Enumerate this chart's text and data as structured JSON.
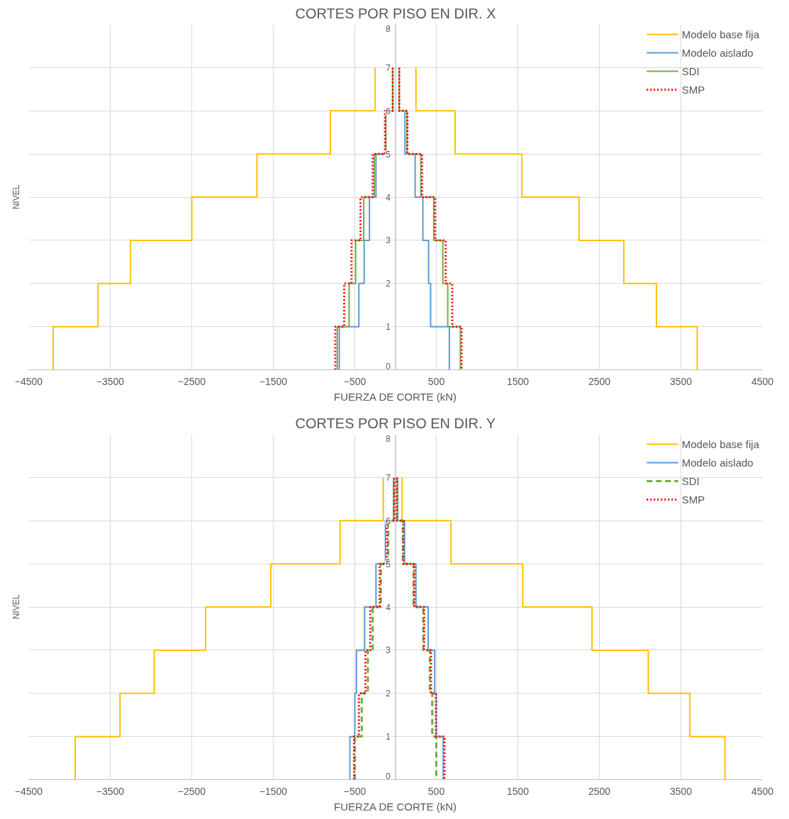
{
  "chart_data": [
    {
      "type": "line",
      "title": "CORTES POR PISO EN DIR. X",
      "xlabel": "FUERZA DE CORTE (kN)",
      "ylabel": "NIVEL",
      "xlim": [
        -4500,
        4500
      ],
      "xticks": [
        -4500,
        -3500,
        -2500,
        -1500,
        -500,
        500,
        1500,
        2500,
        3500,
        4500
      ],
      "ylim": [
        0,
        8
      ],
      "yticks": [
        0,
        1,
        2,
        3,
        4,
        5,
        6,
        7,
        8
      ],
      "grid": true,
      "legend": "top right",
      "marker": "none",
      "series": [
        {
          "name": "Modelo base fija",
          "color": "#ffc000",
          "line_style": "solid",
          "x": [
            -4200,
            -4200,
            -3650,
            -3650,
            -3250,
            -3250,
            -2500,
            -2500,
            -1700,
            -1700,
            -800,
            -800,
            -250,
            -250,
            null,
            250,
            250,
            730,
            730,
            1550,
            1550,
            2250,
            2250,
            2800,
            2800,
            3200,
            3200,
            3700,
            3700
          ],
          "values": [
            0,
            1,
            1,
            2,
            2,
            3,
            3,
            4,
            4,
            5,
            5,
            6,
            6,
            7,
            null,
            7,
            6,
            6,
            5,
            5,
            4,
            4,
            3,
            3,
            2,
            2,
            1,
            1,
            0
          ]
        },
        {
          "name": "Modelo aislado",
          "color": "#5b9bd5",
          "line_style": "solid",
          "values": [
            0,
            1,
            1,
            2,
            2,
            3,
            3,
            4,
            4,
            5,
            5,
            6,
            6,
            7,
            null,
            null,
            null,
            6,
            5,
            5,
            4,
            4,
            3,
            3,
            2,
            2,
            1,
            1,
            0
          ],
          "x": [
            -690,
            -690,
            -450,
            -450,
            -385,
            -385,
            -320,
            -320,
            -240,
            -240,
            -120,
            -120,
            -35,
            -35,
            null,
            null,
            null,
            115,
            115,
            240,
            240,
            335,
            335,
            405,
            405,
            430,
            430,
            660,
            660
          ]
        },
        {
          "name": "SDI",
          "color": "#70ad47",
          "line_style": "solid",
          "x": [
            -715,
            -715,
            -570,
            -570,
            -490,
            -490,
            -390,
            -390,
            -260,
            -260,
            -120,
            -120,
            -35,
            -35,
            null,
            45,
            45,
            140,
            140,
            310,
            310,
            470,
            470,
            580,
            580,
            640,
            640,
            795,
            795
          ],
          "values": [
            0,
            1,
            1,
            2,
            2,
            3,
            3,
            4,
            4,
            5,
            5,
            6,
            6,
            7,
            null,
            7,
            6,
            6,
            5,
            5,
            4,
            4,
            3,
            3,
            2,
            2,
            1,
            1,
            0
          ]
        },
        {
          "name": "SMP",
          "color": "#ff0000",
          "line_style": "dotted",
          "x": [
            -740,
            -740,
            -630,
            -630,
            -540,
            -540,
            -430,
            -430,
            -280,
            -280,
            -130,
            -130,
            -35,
            -35,
            null,
            45,
            45,
            145,
            145,
            325,
            325,
            485,
            485,
            615,
            615,
            695,
            695,
            810,
            810
          ],
          "values": [
            0,
            1,
            1,
            2,
            2,
            3,
            3,
            4,
            4,
            5,
            5,
            6,
            6,
            7,
            null,
            7,
            6,
            6,
            5,
            5,
            4,
            4,
            3,
            3,
            2,
            2,
            1,
            1,
            0
          ]
        }
      ]
    },
    {
      "type": "line",
      "title": "CORTES POR PISO EN DIR. Y",
      "xlabel": "FUERZA DE CORTE (kN)",
      "ylabel": "NIVEL",
      "xlim": [
        -4500,
        4500
      ],
      "xticks": [
        -4500,
        -3500,
        -2500,
        -1500,
        -500,
        500,
        1500,
        2500,
        3500,
        4500
      ],
      "ylim": [
        0,
        8
      ],
      "yticks": [
        0,
        1,
        2,
        3,
        4,
        5,
        6,
        7,
        8
      ],
      "grid": true,
      "legend": "top right",
      "marker": "none",
      "series": [
        {
          "name": "Modelo base fija",
          "color": "#ffc000",
          "line_style": "solid",
          "x": [
            -3930,
            -3930,
            -3380,
            -3380,
            -2960,
            -2960,
            -2330,
            -2330,
            -1530,
            -1530,
            -680,
            -680,
            -150,
            -150,
            null,
            80,
            80,
            680,
            680,
            1560,
            1560,
            2410,
            2410,
            3100,
            3100,
            3610,
            3610,
            4040,
            4040
          ],
          "values": [
            0,
            1,
            1,
            2,
            2,
            3,
            3,
            4,
            4,
            5,
            5,
            6,
            6,
            7,
            null,
            7,
            6,
            6,
            5,
            5,
            4,
            4,
            3,
            3,
            2,
            2,
            1,
            1,
            0
          ]
        },
        {
          "name": "Modelo aislado",
          "color": "#5b9bd5",
          "line_style": "solid",
          "x": [
            -560,
            -560,
            -500,
            -500,
            -480,
            -480,
            -380,
            -380,
            -240,
            -240,
            -125,
            -125,
            -25,
            -25,
            null,
            25,
            25,
            110,
            110,
            250,
            250,
            400,
            400,
            480,
            480,
            500,
            500,
            585,
            585
          ],
          "values": [
            0,
            1,
            1,
            2,
            2,
            3,
            3,
            4,
            4,
            5,
            5,
            6,
            6,
            7,
            null,
            7,
            6,
            6,
            5,
            5,
            4,
            4,
            3,
            3,
            2,
            2,
            1,
            1,
            0
          ]
        },
        {
          "name": "SDI",
          "color": "#70ad47",
          "line_style": "dashed",
          "x": [
            -500,
            -500,
            -415,
            -415,
            -340,
            -340,
            -280,
            -280,
            -180,
            -180,
            -90,
            -90,
            -20,
            -20,
            null,
            20,
            20,
            90,
            90,
            220,
            220,
            340,
            340,
            420,
            420,
            450,
            450,
            500,
            500
          ],
          "values": [
            0,
            1,
            1,
            2,
            2,
            3,
            3,
            4,
            4,
            5,
            5,
            6,
            6,
            7,
            null,
            7,
            6,
            6,
            5,
            5,
            4,
            4,
            3,
            3,
            2,
            2,
            1,
            1,
            0
          ]
        },
        {
          "name": "SMP",
          "color": "#ff0000",
          "line_style": "dotted",
          "x": [
            -510,
            -510,
            -450,
            -450,
            -370,
            -370,
            -310,
            -310,
            -195,
            -195,
            -105,
            -105,
            -15,
            -15,
            null,
            15,
            15,
            95,
            95,
            230,
            230,
            350,
            350,
            435,
            435,
            495,
            495,
            600,
            600
          ],
          "values": [
            0,
            1,
            1,
            2,
            2,
            3,
            3,
            4,
            4,
            5,
            5,
            6,
            6,
            7,
            null,
            7,
            6,
            6,
            5,
            5,
            4,
            4,
            3,
            3,
            2,
            2,
            1,
            1,
            0
          ]
        }
      ]
    }
  ]
}
